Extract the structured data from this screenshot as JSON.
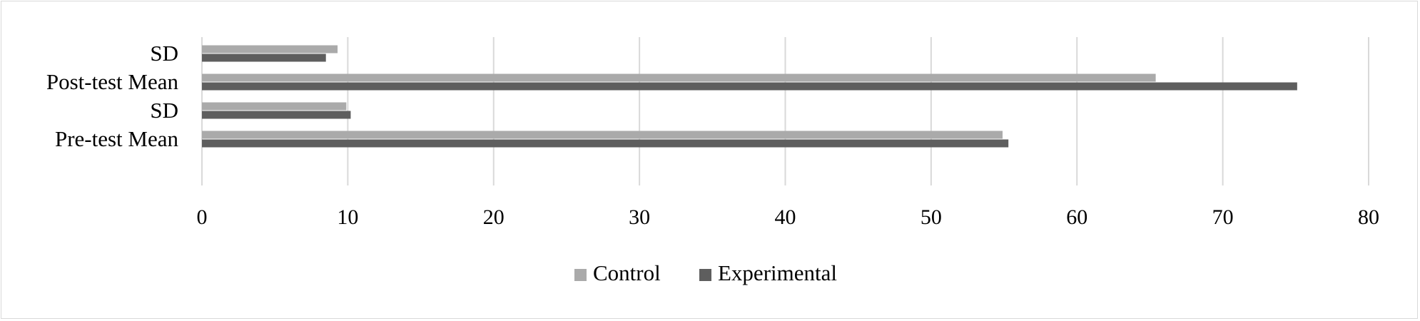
{
  "chart_data": {
    "type": "bar",
    "orientation": "horizontal",
    "categories": [
      "Pre-test Mean",
      "SD",
      "Post-test Mean",
      "SD"
    ],
    "series": [
      {
        "name": "Control",
        "values": [
          54.9,
          9.9,
          65.4,
          9.3
        ],
        "color": "#aaaaaa"
      },
      {
        "name": "Experimental",
        "values": [
          55.3,
          10.2,
          75.1,
          8.5
        ],
        "color": "#5e5e5e"
      }
    ],
    "xlim": [
      0,
      80
    ],
    "xticks": [
      0,
      10,
      20,
      30,
      40,
      50,
      60,
      70,
      80
    ],
    "grid": true,
    "legend_position": "bottom"
  }
}
